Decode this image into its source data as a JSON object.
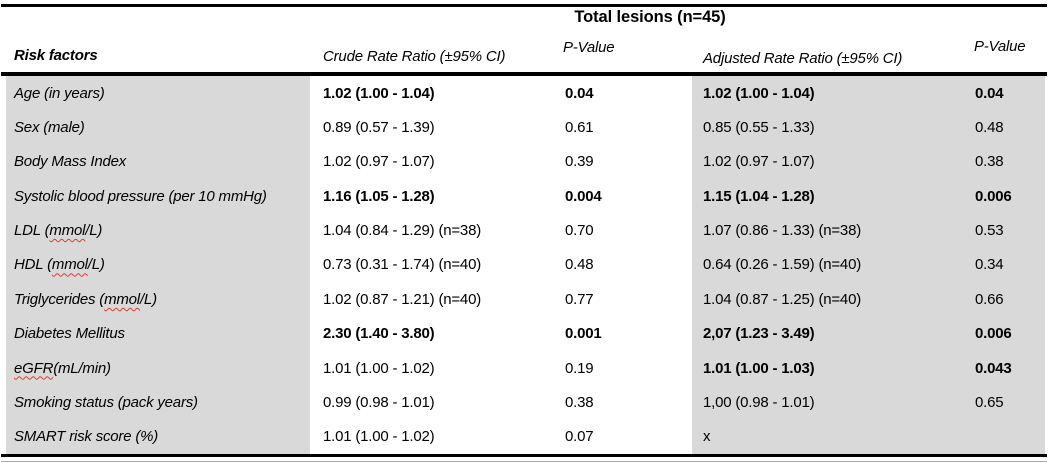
{
  "table": {
    "title": "Total lesions (n=45)",
    "columns": {
      "risk_factors": "Risk factors",
      "crude": "Crude Rate Ratio (±95% CI)",
      "p_value_1": "P-Value",
      "adjusted": "Adjusted Rate Ratio (±95% CI)",
      "p_value_2": "P-Value"
    },
    "rows": [
      {
        "label_pre": "Age (in years)",
        "label_misspelled": "",
        "label_post": "",
        "crude": "1.02 (1.00 - 1.04)",
        "p_crude": "0.04",
        "adjusted": "1.02 (1.00 - 1.04)",
        "p_adjusted": "0.04",
        "bold_crude": true,
        "bold_p_crude": true,
        "bold_adjusted": true,
        "bold_p_adjusted": true
      },
      {
        "label_pre": "Sex (male)",
        "label_misspelled": "",
        "label_post": "",
        "crude": "0.89 (0.57 - 1.39)",
        "p_crude": "0.61",
        "adjusted": "0.85 (0.55 - 1.33)",
        "p_adjusted": "0.48",
        "bold_crude": false,
        "bold_p_crude": false,
        "bold_adjusted": false,
        "bold_p_adjusted": false
      },
      {
        "label_pre": "Body Mass Index",
        "label_misspelled": "",
        "label_post": "",
        "crude": "1.02 (0.97 - 1.07)",
        "p_crude": "0.39",
        "adjusted": "1.02 (0.97 - 1.07)",
        "p_adjusted": "0.38",
        "bold_crude": false,
        "bold_p_crude": false,
        "bold_adjusted": false,
        "bold_p_adjusted": false
      },
      {
        "label_pre": "Systolic blood pressure (per 10 mmHg)",
        "label_misspelled": "",
        "label_post": "",
        "crude": "1.16 (1.05 - 1.28)",
        "p_crude": "0.004",
        "adjusted": "1.15 (1.04 - 1.28)",
        "p_adjusted": "0.006",
        "bold_crude": true,
        "bold_p_crude": true,
        "bold_adjusted": true,
        "bold_p_adjusted": true
      },
      {
        "label_pre": "LDL (",
        "label_misspelled": "mmol",
        "label_post": "/L)",
        "crude": "1.04 (0.84 - 1.29) (n=38)",
        "p_crude": "0.70",
        "adjusted": "1.07 (0.86 - 1.33) (n=38)",
        "p_adjusted": "0.53",
        "bold_crude": false,
        "bold_p_crude": false,
        "bold_adjusted": false,
        "bold_p_adjusted": false
      },
      {
        "label_pre": "HDL (",
        "label_misspelled": "mmol",
        "label_post": "/L)",
        "crude": "0.73 (0.31 - 1.74) (n=40)",
        "p_crude": "0.48",
        "adjusted": "0.64 (0.26 - 1.59) (n=40)",
        "p_adjusted": "0.34",
        "bold_crude": false,
        "bold_p_crude": false,
        "bold_adjusted": false,
        "bold_p_adjusted": false
      },
      {
        "label_pre": "Triglycerides (",
        "label_misspelled": "mmol",
        "label_post": "/L)",
        "crude": "1.02 (0.87 - 1.21) (n=40)",
        "p_crude": "0.77",
        "adjusted": "1.04 (0.87 - 1.25) (n=40)",
        "p_adjusted": "0.66",
        "bold_crude": false,
        "bold_p_crude": false,
        "bold_adjusted": false,
        "bold_p_adjusted": false
      },
      {
        "label_pre": "Diabetes Mellitus",
        "label_misspelled": "",
        "label_post": "",
        "crude": "2.30 (1.40 - 3.80)",
        "p_crude": "0.001",
        "adjusted": "2,07 (1.23 - 3.49)",
        "p_adjusted": "0.006",
        "bold_crude": true,
        "bold_p_crude": true,
        "bold_adjusted": true,
        "bold_p_adjusted": true
      },
      {
        "label_pre": "",
        "label_misspelled": "eGFR",
        "label_post": " (mL/min)",
        "crude": "1.01 (1.00 - 1.02)",
        "p_crude": "0.19",
        "adjusted": "1.01 (1.00 - 1.03)",
        "p_adjusted": "0.043",
        "bold_crude": false,
        "bold_p_crude": false,
        "bold_adjusted": true,
        "bold_p_adjusted": true
      },
      {
        "label_pre": "Smoking status (pack years)",
        "label_misspelled": "",
        "label_post": "",
        "crude": "0.99 (0.98 - 1.01)",
        "p_crude": "0.38",
        "adjusted": "1,00 (0.98 - 1.01)",
        "p_adjusted": "0.65",
        "bold_crude": false,
        "bold_p_crude": false,
        "bold_adjusted": false,
        "bold_p_adjusted": false
      },
      {
        "label_pre": "SMART risk score (%)",
        "label_misspelled": "",
        "label_post": "",
        "crude": "1.01 (1.00 - 1.02)",
        "p_crude": "0.07",
        "adjusted": "x",
        "p_adjusted": "",
        "bold_crude": false,
        "bold_p_crude": false,
        "bold_adjusted": false,
        "bold_p_adjusted": false
      }
    ]
  },
  "colors": {
    "row_shading": "#d9d9d9",
    "spellcheck_squiggle": "#dd3b32",
    "border": "#000000",
    "text": "#000000"
  }
}
